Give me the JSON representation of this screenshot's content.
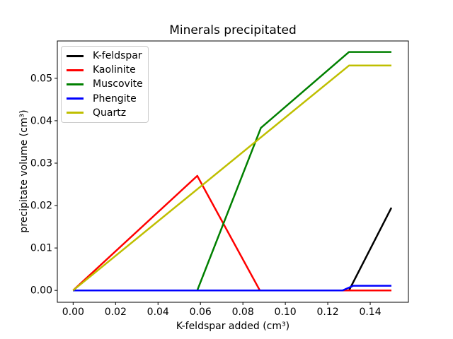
{
  "chart_data": {
    "type": "line",
    "title": "Minerals precipitated",
    "xlabel": "K-feldspar added (cm³)",
    "ylabel": "precipitate volume (cm³)",
    "xlim": [
      -0.00745,
      0.158
    ],
    "ylim": [
      -0.0028,
      0.0588
    ],
    "grid": false,
    "legend_position": "upper left",
    "x_ticks": {
      "values": [
        0.0,
        0.02,
        0.04,
        0.06,
        0.08,
        0.1,
        0.12,
        0.14
      ],
      "labels": [
        "0.00",
        "0.02",
        "0.04",
        "0.06",
        "0.08",
        "0.10",
        "0.12",
        "0.14"
      ]
    },
    "y_ticks": {
      "values": [
        0.0,
        0.01,
        0.02,
        0.03,
        0.04,
        0.05
      ],
      "labels": [
        "0.00",
        "0.01",
        "0.02",
        "0.03",
        "0.04",
        "0.05"
      ]
    },
    "series": [
      {
        "name": "K-feldspar",
        "color": "#000000",
        "points": [
          [
            0,
            0
          ],
          [
            0.13,
            0
          ],
          [
            0.15,
            0.0195
          ]
        ]
      },
      {
        "name": "Kaolinite",
        "color": "#ff0000",
        "points": [
          [
            0,
            0
          ],
          [
            0.0585,
            0.027
          ],
          [
            0.088,
            0
          ],
          [
            0.15,
            0
          ]
        ]
      },
      {
        "name": "Muscovite",
        "color": "#008000",
        "points": [
          [
            0,
            0
          ],
          [
            0.0585,
            0
          ],
          [
            0.0885,
            0.0383
          ],
          [
            0.13,
            0.0562
          ],
          [
            0.15,
            0.0562
          ]
        ]
      },
      {
        "name": "Phengite",
        "color": "#0000ff",
        "points": [
          [
            0,
            0
          ],
          [
            0.127,
            0
          ],
          [
            0.132,
            0.0011
          ],
          [
            0.15,
            0.0011
          ]
        ]
      },
      {
        "name": "Quartz",
        "color": "#bfbf00",
        "points": [
          [
            0,
            0
          ],
          [
            0.13,
            0.053
          ],
          [
            0.15,
            0.053
          ]
        ]
      }
    ]
  }
}
